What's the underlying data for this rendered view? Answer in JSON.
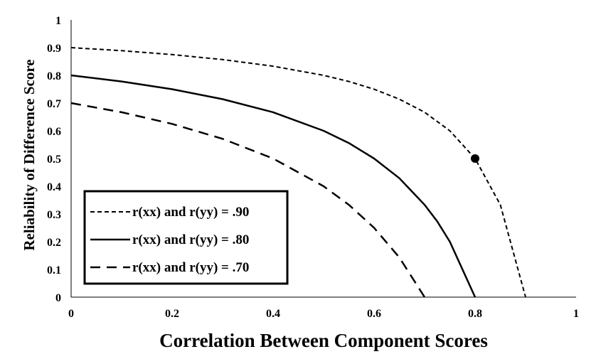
{
  "chart_data": {
    "type": "line",
    "title": "",
    "xlabel": "Correlation Between Component Scores",
    "ylabel": "Reliability of Difference Score",
    "xlim": [
      0,
      1
    ],
    "ylim": [
      0,
      1
    ],
    "x_ticks": [
      "0",
      "0.2",
      "0.4",
      "0.6",
      "0.8",
      "1"
    ],
    "y_ticks": [
      "0",
      "0.1",
      "0.2",
      "0.3",
      "0.4",
      "0.5",
      "0.6",
      "0.7",
      "0.8",
      "0.9",
      "1"
    ],
    "grid": false,
    "legend_position": "bottom-left",
    "series": [
      {
        "name": "r(xx) and r(yy) = .90",
        "style": "short-dash",
        "x": [
          0,
          0.1,
          0.2,
          0.3,
          0.4,
          0.5,
          0.55,
          0.6,
          0.65,
          0.7,
          0.75,
          0.8,
          0.85,
          0.9
        ],
        "y": [
          0.9,
          0.889,
          0.875,
          0.857,
          0.833,
          0.8,
          0.778,
          0.75,
          0.714,
          0.667,
          0.6,
          0.5,
          0.333,
          0
        ]
      },
      {
        "name": "r(xx) and r(yy) = .80",
        "style": "solid",
        "x": [
          0,
          0.1,
          0.2,
          0.3,
          0.4,
          0.5,
          0.55,
          0.6,
          0.65,
          0.7,
          0.725,
          0.75,
          0.8
        ],
        "y": [
          0.8,
          0.778,
          0.75,
          0.714,
          0.667,
          0.6,
          0.556,
          0.5,
          0.429,
          0.333,
          0.273,
          0.2,
          0
        ]
      },
      {
        "name": "r(xx) and r(yy) = .70",
        "style": "long-dash",
        "x": [
          0,
          0.1,
          0.2,
          0.3,
          0.4,
          0.5,
          0.55,
          0.6,
          0.65,
          0.7
        ],
        "y": [
          0.7,
          0.667,
          0.625,
          0.571,
          0.5,
          0.4,
          0.333,
          0.25,
          0.143,
          0
        ]
      }
    ],
    "annotations": [
      {
        "type": "marker",
        "x": 0.8,
        "y": 0.5
      }
    ]
  }
}
